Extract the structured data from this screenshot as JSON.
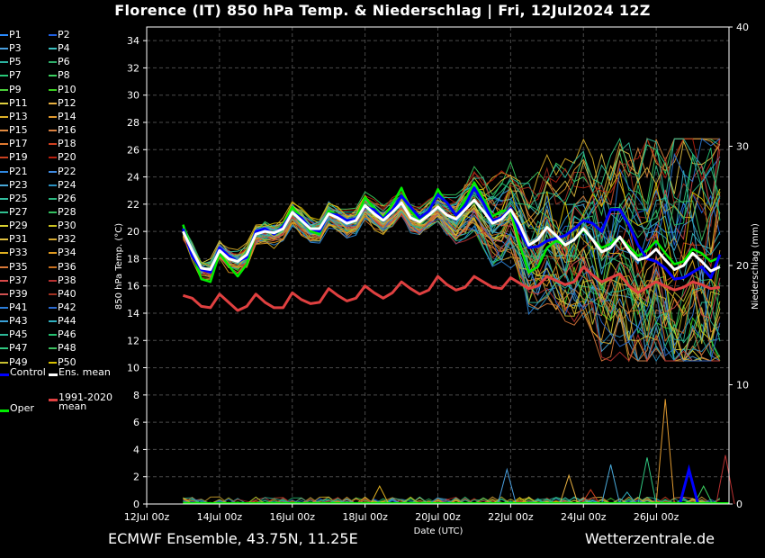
{
  "header": {
    "title": "Florence  (IT)  850 hPa Temp. & Niederschlag | Fri, 12Jul2024 12Z"
  },
  "footer": {
    "source": "ECMWF Ensemble, 43.75N, 11.25E",
    "brand": "Wetterzentrale.de"
  },
  "colors": {
    "background": "#000000",
    "grid": "#555555",
    "control": "#0000ff",
    "ens_mean": "#ffffff",
    "climate_mean": "#e04040",
    "oper": "#00ee00"
  },
  "legend": {
    "members": [
      "P1",
      "P2",
      "P3",
      "P4",
      "P5",
      "P6",
      "P7",
      "P8",
      "P9",
      "P10",
      "P11",
      "P12",
      "P13",
      "P14",
      "P15",
      "P16",
      "P17",
      "P18",
      "P19",
      "P20",
      "P21",
      "P22",
      "P23",
      "P24",
      "P25",
      "P26",
      "P27",
      "P28",
      "P29",
      "P30",
      "P31",
      "P32",
      "P33",
      "P34",
      "P35",
      "P36",
      "P37",
      "P38",
      "P39",
      "P40",
      "P41",
      "P42",
      "P43",
      "P44",
      "P45",
      "P46",
      "P47",
      "P48",
      "P49",
      "P50"
    ],
    "member_colors": [
      "#2a8cff",
      "#1f5fe0",
      "#4aa0e0",
      "#3bc0c0",
      "#2cb3a0",
      "#2fae6a",
      "#28c878",
      "#3bd060",
      "#4bcf3a",
      "#3ad020",
      "#e0d040",
      "#e8b040",
      "#dcb028",
      "#e09a30",
      "#e08a40",
      "#d88040",
      "#e07a30",
      "#d04020",
      "#c84020",
      "#b82010",
      "#2f88e0",
      "#3f8ae0",
      "#48a8d8",
      "#2a90c0",
      "#32c0a0",
      "#2ab880",
      "#30c090",
      "#33c060",
      "#d8d030",
      "#c8c020",
      "#e0c040",
      "#d4a830",
      "#e0b020",
      "#e09a20",
      "#d87838",
      "#c87020",
      "#d84848",
      "#b83030",
      "#d05050",
      "#a03020",
      "#2b7cd8",
      "#2c6ad0",
      "#3aa0d8",
      "#30b0c0",
      "#2cb898",
      "#24c070",
      "#30c880",
      "#3cc060",
      "#c8c030",
      "#d8c000"
    ],
    "control": "Control",
    "ens_mean": "Ens. mean",
    "climate_mean": "1991-2020\nmean",
    "oper": "Oper"
  },
  "chart_data": {
    "type": "line",
    "xlabel": "Date (UTC)",
    "ylabel": "850 hPa Temp. (°C)",
    "ylabel_right": "Niederschlag (mm)",
    "x_range": [
      0,
      16
    ],
    "x_ticks": [
      0,
      2,
      4,
      6,
      8,
      10,
      12,
      14
    ],
    "x_tick_labels": [
      "12Jul 00z",
      "14Jul 00z",
      "16Jul 00z",
      "18Jul 00z",
      "20Jul 00z",
      "22Jul 00z",
      "24Jul 00z",
      "26Jul 00z"
    ],
    "ylim": [
      0,
      35
    ],
    "y_ticks": [
      0,
      2,
      4,
      6,
      8,
      10,
      12,
      14,
      16,
      18,
      20,
      22,
      24,
      26,
      28,
      30,
      32,
      34
    ],
    "ylim_right": [
      0,
      40
    ],
    "y_ticks_right": [
      0,
      10,
      20,
      30,
      40
    ],
    "grid": true,
    "legend_position": "left, outside plot",
    "start": 1.0,
    "step": 0.25,
    "ens_mean": [
      20,
      18.6,
      17.3,
      17.2,
      18.6,
      18.0,
      17.8,
      18.3,
      19.8,
      20.0,
      19.9,
      20.2,
      21.4,
      20.8,
      20.2,
      20.2,
      21.3,
      21.0,
      20.6,
      20.8,
      21.9,
      21.3,
      20.8,
      21.4,
      22.1,
      21.0,
      20.7,
      21.2,
      21.8,
      21.2,
      20.9,
      21.6,
      22.3,
      21.5,
      20.6,
      20.9,
      21.6,
      20.5,
      19.0,
      19.4,
      20.3,
      19.7,
      19.0,
      19.4,
      20.2,
      19.4,
      18.5,
      18.8,
      19.6,
      18.6,
      17.9,
      18.1,
      18.7,
      17.9,
      17.2,
      17.5,
      18.4,
      17.8,
      17.1,
      17.4
    ],
    "control": [
      20.2,
      18.2,
      17.2,
      17.0,
      18.8,
      18.2,
      17.8,
      18.1,
      20.0,
      20.2,
      19.8,
      20.4,
      21.4,
      21.0,
      20.2,
      20.0,
      21.3,
      21.2,
      20.8,
      20.9,
      21.8,
      21.6,
      20.9,
      21.6,
      22.6,
      21.8,
      21.0,
      21.5,
      22.7,
      22.1,
      21.2,
      21.9,
      23.2,
      22.1,
      20.8,
      21.0,
      21.7,
      20.0,
      18.8,
      18.9,
      19.3,
      19.5,
      19.7,
      20.2,
      20.8,
      20.6,
      20.0,
      21.6,
      21.6,
      20.5,
      19.0,
      18.0,
      17.8,
      17.3,
      16.5,
      16.6,
      17.0,
      17.4,
      16.6,
      18.3
    ],
    "oper": [
      20.5,
      18.5,
      16.5,
      16.3,
      18.4,
      17.5,
      16.7,
      17.6,
      19.9,
      20.1,
      19.8,
      20.5,
      21.8,
      21.0,
      20.0,
      19.8,
      21.5,
      21.2,
      20.7,
      20.9,
      22.5,
      21.7,
      21.0,
      22.0,
      23.2,
      21.5,
      20.8,
      21.6,
      23.1,
      22.0,
      21.2,
      22.3,
      23.6,
      22.4,
      21.1,
      21.5,
      21.5,
      19.0,
      17.0,
      17.4,
      18.8,
      19.3,
      19.0,
      19.4,
      20.1,
      19.4,
      18.8,
      19.1,
      19.6,
      18.9,
      18.2,
      18.6,
      19.3,
      18.4,
      17.6,
      17.8,
      18.7,
      18.4,
      17.8,
      18.1
    ],
    "climate_mean": [
      15.3,
      15.1,
      14.5,
      14.4,
      15.4,
      14.8,
      14.2,
      14.5,
      15.4,
      14.8,
      14.4,
      14.4,
      15.5,
      15.0,
      14.7,
      14.8,
      15.8,
      15.3,
      14.9,
      15.1,
      16.0,
      15.5,
      15.1,
      15.5,
      16.3,
      15.8,
      15.4,
      15.7,
      16.7,
      16.1,
      15.7,
      15.9,
      16.7,
      16.3,
      15.9,
      15.8,
      16.6,
      16.2,
      15.8,
      16.0,
      16.7,
      16.4,
      16.1,
      16.3,
      17.4,
      16.8,
      16.3,
      16.6,
      16.9,
      16.0,
      15.5,
      15.9,
      16.3,
      16.0,
      15.7,
      15.9,
      16.3,
      16.1,
      15.8,
      15.9
    ],
    "precip_spikes": [
      {
        "member": "P23",
        "x": 12.75,
        "value": 3.3
      },
      {
        "member": "P14",
        "x": 14.25,
        "value": 8.8
      },
      {
        "member": "P47",
        "x": 13.75,
        "value": 3.9
      },
      {
        "member": "P12",
        "x": 11.6,
        "value": 2.4
      },
      {
        "member": "P38",
        "x": 15.9,
        "value": 4.1
      },
      {
        "member": "P8",
        "x": 15.3,
        "value": 1.5
      },
      {
        "member": "P3",
        "x": 9.9,
        "value": 2.9
      },
      {
        "member": "P18",
        "x": 12.2,
        "value": 1.2
      },
      {
        "member": "P33",
        "x": 6.4,
        "value": 1.5
      },
      {
        "member": "P44",
        "x": 13.2,
        "value": 1.0
      },
      {
        "member": "Control",
        "x": 14.9,
        "value": 2.9
      }
    ]
  }
}
